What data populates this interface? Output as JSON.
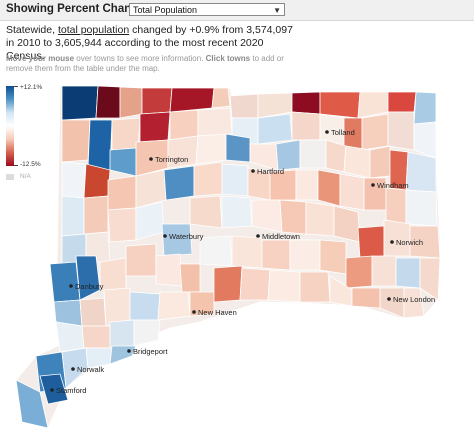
{
  "header": {
    "showing_label": "Showing Percent Change in",
    "selected_measure": "Total Population"
  },
  "summary": {
    "prefix": "Statewide,",
    "link_text": "total population",
    "rest": "changed by +0.9% from 3,574,097 in 2010 to 3,605,944 according to the most recent 2020 Census."
  },
  "hint": {
    "part1": "Move your mouse",
    "part2": "over towns to see more information.",
    "part3": "Click towns",
    "part4": "to add or remove them from the table under the map."
  },
  "legend": {
    "max_label": "+12.1%",
    "min_label": "-12.5%",
    "na_label": "N/A",
    "colors": [
      "#0b4f8f",
      "#4f93c6",
      "#d4e5f2",
      "#ffffff",
      "#f6c9b5",
      "#d6604d",
      "#9b0a1f"
    ],
    "na_color": "#dcdcdc"
  },
  "cities": [
    {
      "name": "Torrington"
    },
    {
      "name": "Hartford"
    },
    {
      "name": "Tolland"
    },
    {
      "name": "Windham"
    },
    {
      "name": "Waterbury"
    },
    {
      "name": "Middletown"
    },
    {
      "name": "Norwich"
    },
    {
      "name": "Danbury"
    },
    {
      "name": "New Haven"
    },
    {
      "name": "New London"
    },
    {
      "name": "Bridgeport"
    },
    {
      "name": "Norwalk"
    },
    {
      "name": "Stamford"
    }
  ]
}
